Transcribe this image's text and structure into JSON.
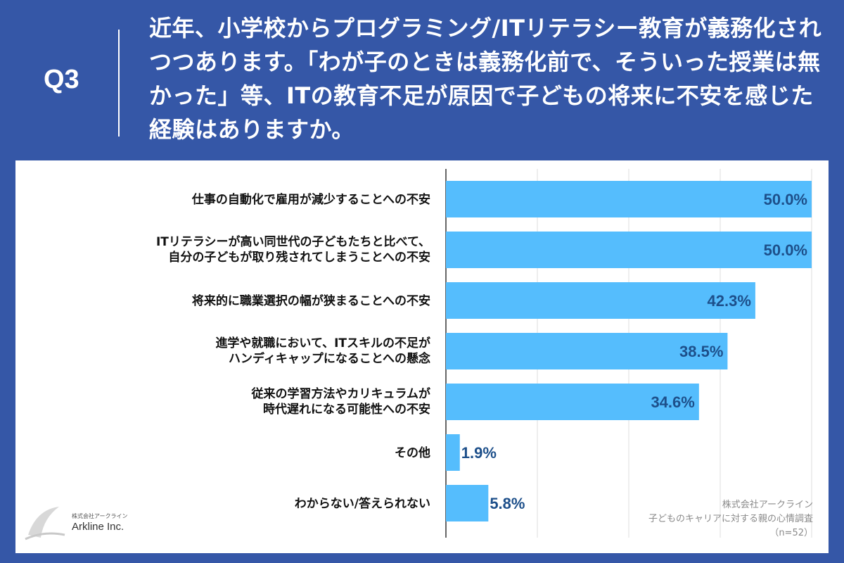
{
  "header": {
    "q_label": "Q3",
    "question": "近年、小学校からプログラミング/ITリテラシー教育が義務化されつつあります。「わが子のときは義務化前で、そういった授業は無かった」等、ITの教育不足が原因で子どもの将来に不安を感じた経験はありますか。"
  },
  "chart_data": {
    "type": "bar",
    "orientation": "horizontal",
    "categories": [
      [
        "仕事の自動化で雇用が減少することへの不安"
      ],
      [
        "ITリテラシーが高い同世代の子どもたちと比べて、",
        "自分の子どもが取り残されてしまうことへの不安"
      ],
      [
        "将来的に職業選択の幅が狭まることへの不安"
      ],
      [
        "進学や就職において、ITスキルの不足が",
        "ハンディキャップになることへの懸念"
      ],
      [
        "従来の学習方法やカリキュラムが",
        "時代遅れになる可能性への不安"
      ],
      [
        "その他"
      ],
      [
        "わからない/答えられない"
      ]
    ],
    "values": [
      50.0,
      50.0,
      42.3,
      38.5,
      34.6,
      1.9,
      5.8
    ],
    "value_labels": [
      "50.0%",
      "50.0%",
      "42.3%",
      "38.5%",
      "34.6%",
      "1.9%",
      "5.8%"
    ],
    "xlim": [
      0,
      50
    ],
    "grid": true,
    "bar_color": "#55bdfd",
    "label_color": "#1d4f8a"
  },
  "source": {
    "company": "株式会社アークライン",
    "survey": "子どものキャリアに対する親の心情調査",
    "n": "（n=52）"
  },
  "logo": {
    "small": "株式会社アークライン",
    "name": "Arkline Inc."
  }
}
